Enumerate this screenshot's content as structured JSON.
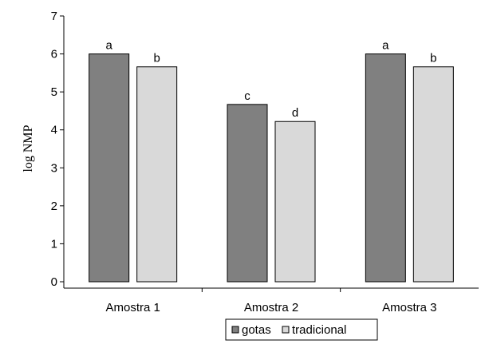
{
  "chart_data": {
    "type": "bar",
    "title": "",
    "xlabel": "",
    "ylabel": "log NMP",
    "ylim": [
      0,
      7
    ],
    "yticks": [
      0,
      1,
      2,
      3,
      4,
      5,
      6,
      7
    ],
    "categories": [
      "Amostra 1",
      "Amostra 2",
      "Amostra 3"
    ],
    "series": [
      {
        "name": "gotas",
        "color": "#808080",
        "values": [
          6.0,
          4.67,
          6.0
        ],
        "labels": [
          "a",
          "c",
          "a"
        ]
      },
      {
        "name": "tradicional",
        "color": "#d9d9d9",
        "values": [
          5.66,
          4.22,
          5.66
        ],
        "labels": [
          "b",
          "d",
          "b"
        ]
      }
    ],
    "legend": {
      "position": "bottom-center",
      "entries": [
        "gotas",
        "tradicional"
      ]
    },
    "grid": false
  }
}
